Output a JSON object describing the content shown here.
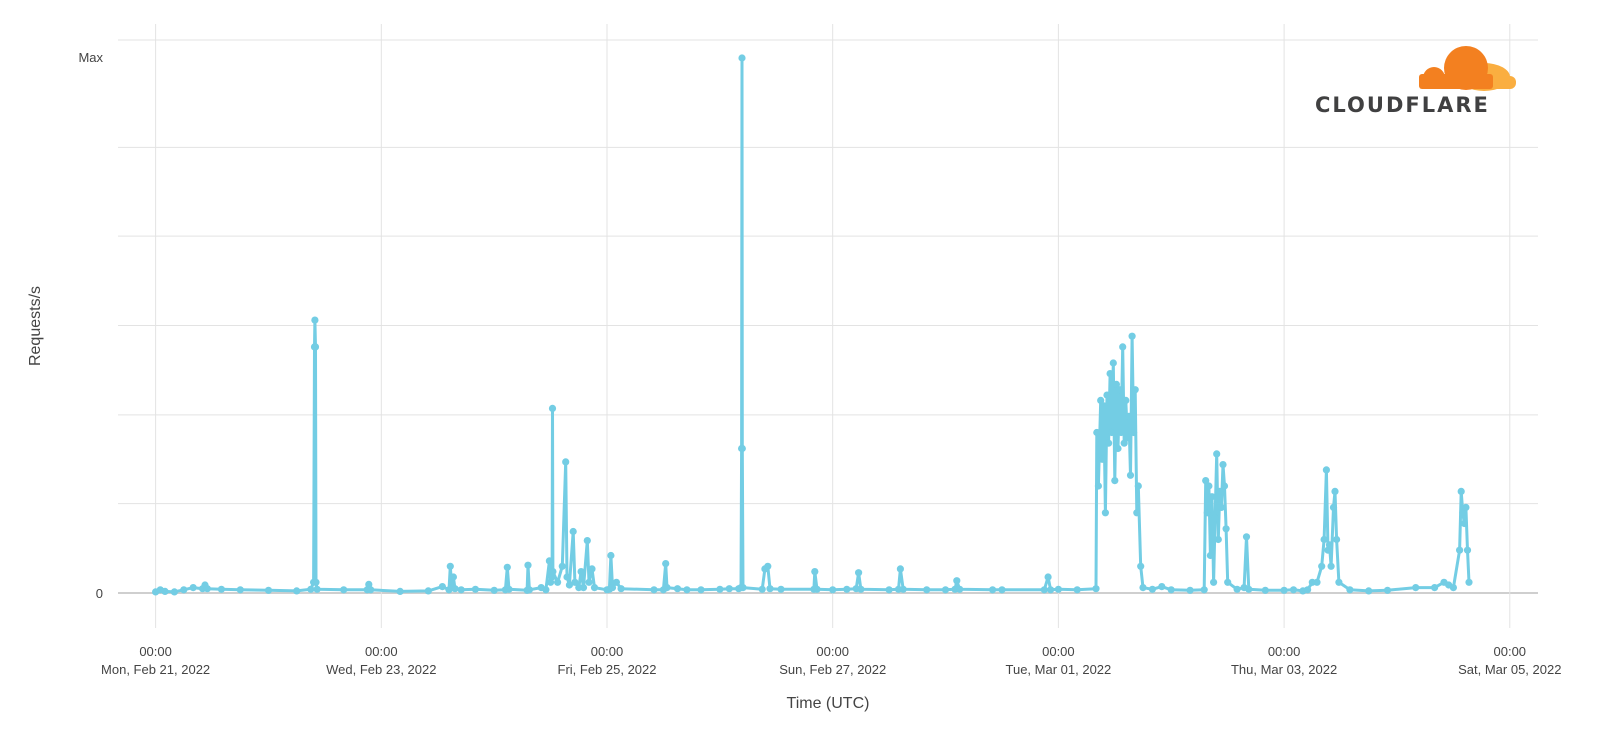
{
  "chart_data": {
    "type": "line",
    "title": "",
    "xlabel": "Time (UTC)",
    "ylabel": "Requests/s",
    "grid": true,
    "line_color": "#73cde4",
    "x_start": "2022-02-21T00:00",
    "xlim": [
      "2022-02-20T16:00",
      "2022-03-05T06:00"
    ],
    "ylim": [
      0,
      1
    ],
    "y_ticks": [
      {
        "value": 0,
        "label": "0"
      },
      {
        "value": 1,
        "label": "Max"
      }
    ],
    "y_gridlines": [
      0,
      0.167,
      0.333,
      0.5,
      0.667,
      0.833,
      1
    ],
    "x_ticks": [
      {
        "time": "00:00",
        "date": "Mon, Feb 21, 2022"
      },
      {
        "time": "00:00",
        "date": "Wed, Feb 23, 2022"
      },
      {
        "time": "00:00",
        "date": "Fri, Feb 25, 2022"
      },
      {
        "time": "00:00",
        "date": "Sun, Feb 27, 2022"
      },
      {
        "time": "00:00",
        "date": "Tue, Mar 01, 2022"
      },
      {
        "time": "00:00",
        "date": "Thu, Mar 03, 2022"
      },
      {
        "time": "00:00",
        "date": "Sat, Mar 05, 2022"
      }
    ],
    "series": [
      {
        "points": [
          [
            "2022-02-21T00:00",
            0.002
          ],
          [
            "2022-02-21T01:00",
            0.006
          ],
          [
            "2022-02-21T02:00",
            0.003
          ],
          [
            "2022-02-21T04:00",
            0.002
          ],
          [
            "2022-02-21T06:00",
            0.006
          ],
          [
            "2022-02-21T08:00",
            0.01
          ],
          [
            "2022-02-21T10:00",
            0.008
          ],
          [
            "2022-02-21T10:30",
            0.015
          ],
          [
            "2022-02-21T11:00",
            0.008
          ],
          [
            "2022-02-21T14:00",
            0.007
          ],
          [
            "2022-02-21T18:00",
            0.006
          ],
          [
            "2022-02-22T00:00",
            0.005
          ],
          [
            "2022-02-22T06:00",
            0.004
          ],
          [
            "2022-02-22T09:00",
            0.007
          ],
          [
            "2022-02-22T09:36",
            0.02
          ],
          [
            "2022-02-22T09:48",
            0.46
          ],
          [
            "2022-02-22T09:53",
            0.51
          ],
          [
            "2022-02-22T10:00",
            0.46
          ],
          [
            "2022-02-22T10:06",
            0.02
          ],
          [
            "2022-02-22T10:20",
            0.007
          ],
          [
            "2022-02-22T16:00",
            0.006
          ],
          [
            "2022-02-22T21:00",
            0.006
          ],
          [
            "2022-02-22T21:20",
            0.016
          ],
          [
            "2022-02-22T21:45",
            0.006
          ],
          [
            "2022-02-23T04:00",
            0.003
          ],
          [
            "2022-02-23T10:00",
            0.004
          ],
          [
            "2022-02-23T13:00",
            0.012
          ],
          [
            "2022-02-23T14:24",
            0.006
          ],
          [
            "2022-02-23T14:40",
            0.05
          ],
          [
            "2022-02-23T15:00",
            0.01
          ],
          [
            "2022-02-23T15:20",
            0.03
          ],
          [
            "2022-02-23T15:40",
            0.008
          ],
          [
            "2022-02-23T17:00",
            0.006
          ],
          [
            "2022-02-23T20:00",
            0.007
          ],
          [
            "2022-02-24T00:00",
            0.005
          ],
          [
            "2022-02-24T02:24",
            0.006
          ],
          [
            "2022-02-24T02:48",
            0.048
          ],
          [
            "2022-02-24T03:10",
            0.007
          ],
          [
            "2022-02-24T07:00",
            0.005
          ],
          [
            "2022-02-24T07:12",
            0.052
          ],
          [
            "2022-02-24T07:30",
            0.006
          ],
          [
            "2022-02-24T10:00",
            0.01
          ],
          [
            "2022-02-24T11:00",
            0.006
          ],
          [
            "2022-02-24T11:45",
            0.06
          ],
          [
            "2022-02-24T12:00",
            0.02
          ],
          [
            "2022-02-24T12:19",
            0.03
          ],
          [
            "2022-02-24T12:24",
            0.345
          ],
          [
            "2022-02-24T12:30",
            0.04
          ],
          [
            "2022-02-24T13:30",
            0.02
          ],
          [
            "2022-02-24T14:30",
            0.05
          ],
          [
            "2022-02-24T15:13",
            0.245
          ],
          [
            "2022-02-24T15:30",
            0.03
          ],
          [
            "2022-02-24T16:00",
            0.015
          ],
          [
            "2022-02-24T16:48",
            0.115
          ],
          [
            "2022-02-24T17:10",
            0.02
          ],
          [
            "2022-02-24T18:00",
            0.01
          ],
          [
            "2022-02-24T18:30",
            0.04
          ],
          [
            "2022-02-24T19:00",
            0.01
          ],
          [
            "2022-02-24T19:48",
            0.098
          ],
          [
            "2022-02-24T20:10",
            0.02
          ],
          [
            "2022-02-24T20:48",
            0.045
          ],
          [
            "2022-02-24T21:20",
            0.01
          ],
          [
            "2022-02-25T00:00",
            0.006
          ],
          [
            "2022-02-25T00:30",
            0.007
          ],
          [
            "2022-02-25T00:50",
            0.07
          ],
          [
            "2022-02-25T01:10",
            0.01
          ],
          [
            "2022-02-25T02:00",
            0.02
          ],
          [
            "2022-02-25T03:00",
            0.008
          ],
          [
            "2022-02-25T10:00",
            0.006
          ],
          [
            "2022-02-25T12:00",
            0.006
          ],
          [
            "2022-02-25T12:29",
            0.055
          ],
          [
            "2022-02-25T12:45",
            0.01
          ],
          [
            "2022-02-25T15:00",
            0.008
          ],
          [
            "2022-02-25T17:00",
            0.006
          ],
          [
            "2022-02-25T20:00",
            0.006
          ],
          [
            "2022-02-26T00:00",
            0.007
          ],
          [
            "2022-02-26T02:00",
            0.008
          ],
          [
            "2022-02-26T04:00",
            0.008
          ],
          [
            "2022-02-26T04:30",
            0.01
          ],
          [
            "2022-02-26T04:38",
            0.27
          ],
          [
            "2022-02-26T04:42",
            1.0
          ],
          [
            "2022-02-26T04:47",
            0.27
          ],
          [
            "2022-02-26T04:55",
            0.01
          ],
          [
            "2022-02-26T09:00",
            0.007
          ],
          [
            "2022-02-26T09:35",
            0.045
          ],
          [
            "2022-02-26T10:12",
            0.05
          ],
          [
            "2022-02-26T10:40",
            0.008
          ],
          [
            "2022-02-26T13:00",
            0.007
          ],
          [
            "2022-02-26T20:00",
            0.007
          ],
          [
            "2022-02-26T20:12",
            0.04
          ],
          [
            "2022-02-26T20:40",
            0.007
          ],
          [
            "2022-02-27T00:00",
            0.006
          ],
          [
            "2022-02-27T03:00",
            0.007
          ],
          [
            "2022-02-27T05:00",
            0.008
          ],
          [
            "2022-02-27T05:30",
            0.038
          ],
          [
            "2022-02-27T06:00",
            0.007
          ],
          [
            "2022-02-27T12:00",
            0.006
          ],
          [
            "2022-02-27T14:00",
            0.007
          ],
          [
            "2022-02-27T14:24",
            0.045
          ],
          [
            "2022-02-27T15:00",
            0.007
          ],
          [
            "2022-02-27T20:00",
            0.006
          ],
          [
            "2022-02-28T00:00",
            0.006
          ],
          [
            "2022-02-28T02:00",
            0.007
          ],
          [
            "2022-02-28T02:24",
            0.023
          ],
          [
            "2022-02-28T03:00",
            0.007
          ],
          [
            "2022-02-28T10:00",
            0.006
          ],
          [
            "2022-02-28T12:00",
            0.006
          ],
          [
            "2022-02-28T21:00",
            0.006
          ],
          [
            "2022-02-28T21:48",
            0.03
          ],
          [
            "2022-02-28T22:20",
            0.006
          ],
          [
            "2022-03-01T00:00",
            0.007
          ],
          [
            "2022-03-01T04:00",
            0.006
          ],
          [
            "2022-03-01T08:00",
            0.008
          ],
          [
            "2022-03-01T08:10",
            0.3
          ],
          [
            "2022-03-01T08:30",
            0.2
          ],
          [
            "2022-03-01T09:00",
            0.36
          ],
          [
            "2022-03-01T09:20",
            0.25
          ],
          [
            "2022-03-01T09:40",
            0.35
          ],
          [
            "2022-03-01T10:00",
            0.15
          ],
          [
            "2022-03-01T10:20",
            0.37
          ],
          [
            "2022-03-01T10:40",
            0.28
          ],
          [
            "2022-03-01T11:00",
            0.41
          ],
          [
            "2022-03-01T11:20",
            0.3
          ],
          [
            "2022-03-01T11:40",
            0.43
          ],
          [
            "2022-03-01T12:00",
            0.21
          ],
          [
            "2022-03-01T12:20",
            0.39
          ],
          [
            "2022-03-01T12:40",
            0.27
          ],
          [
            "2022-03-01T13:00",
            0.38
          ],
          [
            "2022-03-01T13:20",
            0.3
          ],
          [
            "2022-03-01T13:40",
            0.46
          ],
          [
            "2022-03-01T14:00",
            0.28
          ],
          [
            "2022-03-01T14:20",
            0.36
          ],
          [
            "2022-03-01T14:40",
            0.29
          ],
          [
            "2022-03-01T15:00",
            0.33
          ],
          [
            "2022-03-01T15:20",
            0.22
          ],
          [
            "2022-03-01T15:40",
            0.48
          ],
          [
            "2022-03-01T16:00",
            0.3
          ],
          [
            "2022-03-01T16:20",
            0.38
          ],
          [
            "2022-03-01T16:40",
            0.15
          ],
          [
            "2022-03-01T17:00",
            0.2
          ],
          [
            "2022-03-01T17:30",
            0.05
          ],
          [
            "2022-03-01T18:00",
            0.01
          ],
          [
            "2022-03-01T20:00",
            0.007
          ],
          [
            "2022-03-01T22:00",
            0.012
          ],
          [
            "2022-03-02T00:00",
            0.006
          ],
          [
            "2022-03-02T04:00",
            0.005
          ],
          [
            "2022-03-02T07:00",
            0.006
          ],
          [
            "2022-03-02T07:20",
            0.21
          ],
          [
            "2022-03-02T07:40",
            0.15
          ],
          [
            "2022-03-02T08:00",
            0.2
          ],
          [
            "2022-03-02T08:20",
            0.07
          ],
          [
            "2022-03-02T08:40",
            0.18
          ],
          [
            "2022-03-02T09:00",
            0.02
          ],
          [
            "2022-03-02T09:20",
            0.14
          ],
          [
            "2022-03-02T09:40",
            0.26
          ],
          [
            "2022-03-02T10:00",
            0.1
          ],
          [
            "2022-03-02T10:20",
            0.19
          ],
          [
            "2022-03-02T10:40",
            0.16
          ],
          [
            "2022-03-02T11:00",
            0.24
          ],
          [
            "2022-03-02T11:20",
            0.2
          ],
          [
            "2022-03-02T11:40",
            0.12
          ],
          [
            "2022-03-02T12:00",
            0.02
          ],
          [
            "2022-03-02T14:00",
            0.007
          ],
          [
            "2022-03-02T15:30",
            0.01
          ],
          [
            "2022-03-02T16:00",
            0.105
          ],
          [
            "2022-03-02T16:30",
            0.007
          ],
          [
            "2022-03-02T20:00",
            0.005
          ],
          [
            "2022-03-03T00:00",
            0.005
          ],
          [
            "2022-03-03T02:00",
            0.006
          ],
          [
            "2022-03-03T04:00",
            0.004
          ],
          [
            "2022-03-03T05:00",
            0.006
          ],
          [
            "2022-03-03T06:00",
            0.02
          ],
          [
            "2022-03-03T07:00",
            0.02
          ],
          [
            "2022-03-03T08:00",
            0.05
          ],
          [
            "2022-03-03T08:30",
            0.1
          ],
          [
            "2022-03-03T09:00",
            0.23
          ],
          [
            "2022-03-03T09:20",
            0.08
          ],
          [
            "2022-03-03T09:40",
            0.09
          ],
          [
            "2022-03-03T10:00",
            0.05
          ],
          [
            "2022-03-03T10:30",
            0.16
          ],
          [
            "2022-03-03T10:50",
            0.19
          ],
          [
            "2022-03-03T11:10",
            0.1
          ],
          [
            "2022-03-03T11:40",
            0.02
          ],
          [
            "2022-03-03T14:00",
            0.006
          ],
          [
            "2022-03-03T18:00",
            0.004
          ],
          [
            "2022-03-03T22:00",
            0.005
          ],
          [
            "2022-03-04T04:00",
            0.01
          ],
          [
            "2022-03-04T08:00",
            0.01
          ],
          [
            "2022-03-04T10:00",
            0.02
          ],
          [
            "2022-03-04T11:00",
            0.015
          ],
          [
            "2022-03-04T12:00",
            0.01
          ],
          [
            "2022-03-04T13:20",
            0.08
          ],
          [
            "2022-03-04T13:40",
            0.19
          ],
          [
            "2022-03-04T14:00",
            0.15
          ],
          [
            "2022-03-04T14:20",
            0.13
          ],
          [
            "2022-03-04T14:40",
            0.16
          ],
          [
            "2022-03-04T15:00",
            0.08
          ],
          [
            "2022-03-04T15:20",
            0.02
          ]
        ]
      }
    ]
  },
  "logo": {
    "name": "cloudflare-logo",
    "text": "CLOUDFLARE",
    "colors": {
      "orange": "#f38020",
      "light_orange": "#faae40",
      "text": "#404041"
    }
  }
}
